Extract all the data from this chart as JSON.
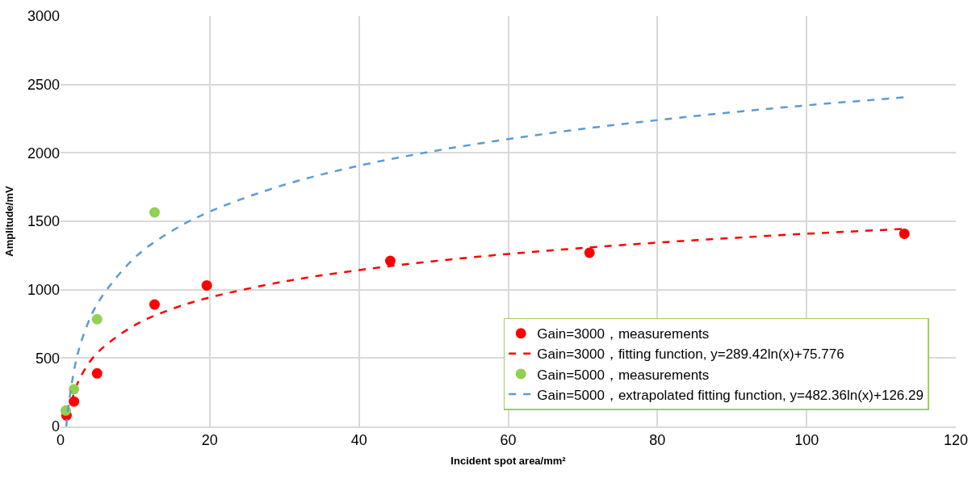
{
  "chart_data": {
    "type": "scatter",
    "xlabel": "Incident spot area/mm²",
    "ylabel": "Amplitude/mV",
    "xlim": [
      0,
      120
    ],
    "xticks": [
      0,
      20,
      40,
      60,
      80,
      100,
      120
    ],
    "ylim": [
      0,
      3000
    ],
    "yticks": [
      0,
      500,
      1000,
      1500,
      2000,
      2500,
      3000
    ],
    "grid": true,
    "legend": "bottom right",
    "series": [
      {
        "name": "Gain=3000，measurements",
        "type": "scatter",
        "marker": "circle",
        "color": "#ff0000",
        "x": [
          0.8,
          1.8,
          4.9,
          12.6,
          19.6,
          44.2,
          70.9,
          113.1
        ],
        "values": [
          80,
          182,
          388,
          891,
          1031,
          1210,
          1270,
          1409
        ]
      },
      {
        "name": "Gain=3000，fitting function, y=289.42ln(x)+75.776",
        "type": "line",
        "line_style": "dashed",
        "color": "#ff0000",
        "x": [
          1,
          2,
          3,
          5,
          10,
          15,
          20,
          30,
          40,
          50,
          60,
          70,
          80,
          90,
          100,
          113
        ],
        "values": [
          76,
          276,
          394,
          542,
          742,
          860,
          943,
          1060,
          1143,
          1208,
          1261,
          1305,
          1344,
          1378,
          1409,
          1444
        ]
      },
      {
        "name": "Gain=5000，measurements",
        "type": "scatter",
        "marker": "circle",
        "color": "#92d050",
        "x": [
          0.7,
          1.8,
          4.9,
          12.6
        ],
        "values": [
          116,
          272,
          784,
          1565
        ]
      },
      {
        "name": "Gain=5000，extrapolated fitting function, y=482.36ln(x)+126.29",
        "type": "line",
        "line_style": "dashed",
        "color": "#5b9bd5",
        "x": [
          0.77,
          1,
          2,
          3,
          5,
          10,
          15,
          20,
          30,
          40,
          50,
          60,
          70,
          80,
          90,
          100,
          113
        ],
        "values": [
          0,
          126,
          461,
          656,
          903,
          1237,
          1432,
          1571,
          1767,
          1906,
          2013,
          2101,
          2176,
          2240,
          2297,
          2348,
          2406
        ]
      }
    ]
  }
}
